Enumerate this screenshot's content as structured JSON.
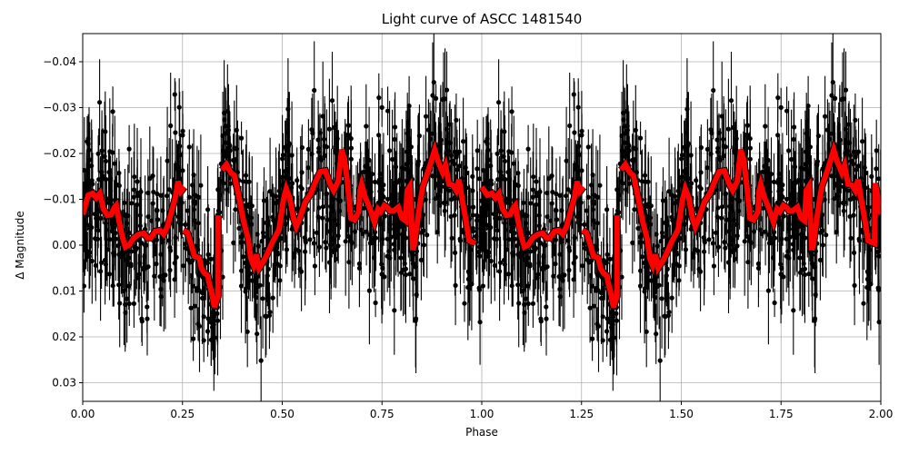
{
  "chart_data": {
    "type": "scatter",
    "title": "Light curve of ASCC 1481540",
    "xlabel": "Phase",
    "ylabel": "Δ Magnitude",
    "xlim": [
      0.0,
      2.0
    ],
    "ylim": [
      0.034,
      -0.046
    ],
    "y_inverted": true,
    "grid": true,
    "legend": null,
    "x_ticks": [
      "0.00",
      "0.25",
      "0.50",
      "0.75",
      "1.00",
      "1.25",
      "1.50",
      "1.75",
      "2.00"
    ],
    "y_ticks": [
      "−0.04",
      "−0.03",
      "−0.02",
      "−0.01",
      "0.00",
      "0.01",
      "0.02",
      "0.03"
    ],
    "series": [
      {
        "name": "observations",
        "kind": "errorbar-scatter",
        "color": "#000000",
        "description": "Dense phase-folded photometric points with vertical error bars, spread roughly between -0.045 and +0.034 magnitude across phase 0-2 (data repeated for second cycle)"
      },
      {
        "name": "binned-mean",
        "kind": "line",
        "color": "#ff0000",
        "segments": [
          {
            "x": [
              0.0,
              0.014,
              0.025,
              0.034,
              0.043,
              0.052,
              0.062,
              0.071,
              0.08,
              0.084,
              0.091,
              0.1,
              0.107,
              0.116,
              0.128,
              0.141,
              0.153,
              0.162,
              0.171,
              0.182,
              0.194,
              0.203,
              0.212,
              0.223,
              0.232,
              0.239,
              0.246,
              0.255
            ],
            "y": [
              -0.0067,
              -0.0109,
              -0.0113,
              -0.0103,
              -0.0113,
              -0.0079,
              -0.0065,
              -0.0067,
              -0.0083,
              -0.0087,
              -0.0053,
              -0.0016,
              0.0004,
              0.0,
              -0.0016,
              -0.0024,
              -0.0026,
              -0.0016,
              -0.0016,
              -0.003,
              -0.0032,
              -0.0024,
              -0.004,
              -0.0075,
              -0.0103,
              -0.0139,
              -0.0117,
              -0.0127
            ]
          },
          {
            "x": [
              0.252,
              0.262,
              0.271,
              0.28,
              0.292,
              0.298,
              0.305,
              0.314,
              0.316,
              0.323,
              0.33,
              0.339,
              0.339
            ],
            "y": [
              -0.0032,
              -0.0028,
              -0.0004,
              0.0024,
              0.0028,
              0.0051,
              0.0061,
              0.0067,
              0.0079,
              0.0103,
              0.0135,
              0.0111,
              -0.0065
            ]
          },
          {
            "x": [
              0.349,
              0.36,
              0.371,
              0.38,
              0.392,
              0.403,
              0.415,
              0.421,
              0.428,
              0.435,
              0.442,
              0.451,
              0.46,
              0.476,
              0.492,
              0.503,
              0.51,
              0.519,
              0.528,
              0.535,
              0.544,
              0.558,
              0.572,
              0.583,
              0.595,
              0.608,
              0.62,
              0.629,
              0.64,
              0.649,
              0.656,
              0.663,
              0.672,
              0.681,
              0.692,
              0.695,
              0.699,
              0.708,
              0.72,
              0.731,
              0.74,
              0.747,
              0.756,
              0.763,
              0.77,
              0.779,
              0.791,
              0.8,
              0.809,
              0.813,
              0.82,
              0.827,
              0.831,
              0.843,
              0.852,
              0.868,
              0.882,
              0.891,
              0.902,
              0.909,
              0.918,
              0.927,
              0.936,
              0.943,
              0.952,
              0.961,
              0.968,
              0.984
            ],
            "y": [
              -0.0164,
              -0.0176,
              -0.0158,
              -0.0152,
              -0.0103,
              -0.0053,
              -0.0012,
              0.0028,
              0.0044,
              0.002,
              0.005,
              0.0038,
              0.0024,
              -0.0008,
              -0.0034,
              -0.0099,
              -0.0123,
              -0.0103,
              -0.0059,
              -0.004,
              -0.0059,
              -0.0095,
              -0.0113,
              -0.0137,
              -0.016,
              -0.0162,
              -0.0133,
              -0.0119,
              -0.0139,
              -0.0208,
              -0.0188,
              -0.0139,
              -0.0059,
              -0.0055,
              -0.0073,
              -0.0119,
              -0.0133,
              -0.0105,
              -0.0079,
              -0.005,
              -0.0079,
              -0.0073,
              -0.0087,
              -0.0083,
              -0.0075,
              -0.0075,
              -0.0083,
              -0.0059,
              -0.0053,
              -0.0119,
              -0.0129,
              0.001,
              0.0,
              -0.0079,
              -0.0127,
              -0.0168,
              -0.0208,
              -0.0182,
              -0.0158,
              -0.0174,
              -0.0133,
              -0.0131,
              -0.0119,
              -0.0143,
              -0.0095,
              -0.005,
              -0.001,
              -0.0004
            ]
          },
          {
            "x": [
              1.0,
              1.014,
              1.025,
              1.034,
              1.043,
              1.052,
              1.062,
              1.071,
              1.08,
              1.084,
              1.091,
              1.1,
              1.107,
              1.116,
              1.128,
              1.141,
              1.153,
              1.162,
              1.171,
              1.182,
              1.194,
              1.203,
              1.212,
              1.223,
              1.232,
              1.239,
              1.246,
              1.255
            ],
            "y": [
              -0.0127,
              -0.0109,
              -0.0113,
              -0.0103,
              -0.0113,
              -0.0079,
              -0.0065,
              -0.0067,
              -0.0083,
              -0.0087,
              -0.0053,
              -0.0016,
              0.0004,
              0.0,
              -0.0016,
              -0.0024,
              -0.0026,
              -0.0016,
              -0.0016,
              -0.003,
              -0.0032,
              -0.0024,
              -0.004,
              -0.0075,
              -0.0103,
              -0.0139,
              -0.0117,
              -0.0127
            ]
          },
          {
            "x": [
              1.252,
              1.262,
              1.271,
              1.28,
              1.292,
              1.298,
              1.305,
              1.314,
              1.316,
              1.323,
              1.33,
              1.339,
              1.339
            ],
            "y": [
              -0.0032,
              -0.0028,
              -0.0004,
              0.0024,
              0.0028,
              0.0051,
              0.0061,
              0.0067,
              0.0079,
              0.0103,
              0.0135,
              0.0111,
              -0.0065
            ]
          },
          {
            "x": [
              1.349,
              1.36,
              1.371,
              1.38,
              1.392,
              1.403,
              1.415,
              1.421,
              1.428,
              1.435,
              1.442,
              1.451,
              1.46,
              1.476,
              1.492,
              1.503,
              1.51,
              1.519,
              1.528,
              1.535,
              1.544,
              1.558,
              1.572,
              1.583,
              1.595,
              1.608,
              1.62,
              1.629,
              1.64,
              1.649,
              1.656,
              1.663,
              1.672,
              1.681,
              1.692,
              1.695,
              1.699,
              1.708,
              1.72,
              1.731,
              1.74,
              1.747,
              1.756,
              1.763,
              1.77,
              1.779,
              1.791,
              1.8,
              1.809,
              1.813,
              1.82,
              1.827,
              1.831,
              1.843,
              1.852,
              1.868,
              1.882,
              1.891,
              1.902,
              1.909,
              1.918,
              1.927,
              1.936,
              1.943,
              1.952,
              1.961,
              1.968,
              1.984,
              1.986,
              2.0
            ],
            "y": [
              -0.0164,
              -0.0176,
              -0.0158,
              -0.0152,
              -0.0103,
              -0.0053,
              -0.0012,
              0.0028,
              0.0044,
              0.002,
              0.005,
              0.0038,
              0.0024,
              -0.0008,
              -0.0034,
              -0.0099,
              -0.0123,
              -0.0103,
              -0.0059,
              -0.004,
              -0.0059,
              -0.0095,
              -0.0113,
              -0.0137,
              -0.016,
              -0.0162,
              -0.0133,
              -0.0119,
              -0.0139,
              -0.0208,
              -0.0188,
              -0.0139,
              -0.0059,
              -0.0055,
              -0.0073,
              -0.0119,
              -0.0133,
              -0.0105,
              -0.0079,
              -0.005,
              -0.0079,
              -0.0073,
              -0.0087,
              -0.0083,
              -0.0075,
              -0.0075,
              -0.0083,
              -0.0059,
              -0.0053,
              -0.0119,
              -0.0129,
              0.001,
              0.0,
              -0.0079,
              -0.0127,
              -0.0168,
              -0.0208,
              -0.0182,
              -0.0158,
              -0.0174,
              -0.0133,
              -0.0131,
              -0.0119,
              -0.0143,
              -0.0095,
              -0.005,
              -0.001,
              -0.0004,
              -0.0135,
              -0.0067
            ]
          }
        ]
      }
    ]
  }
}
